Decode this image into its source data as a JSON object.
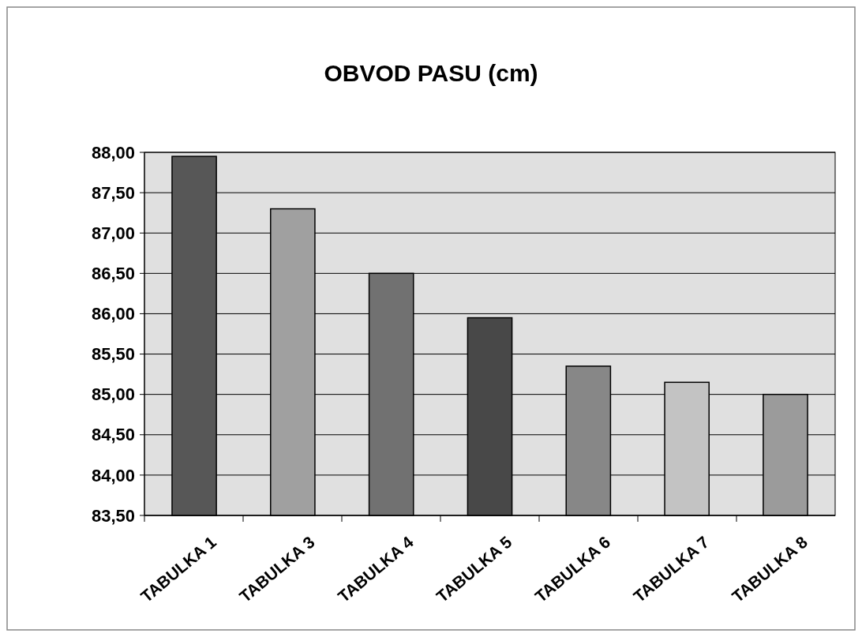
{
  "chart_data": {
    "type": "bar",
    "title": "OBVOD PASU (cm)",
    "categories": [
      "TABULKA 1",
      "TABULKA 3",
      "TABULKA 4",
      "TABULKA 5",
      "TABULKA 6",
      "TABULKA 7",
      "TABULKA 8"
    ],
    "values": [
      87.95,
      87.3,
      86.5,
      85.95,
      85.35,
      85.15,
      85.0
    ],
    "colors": [
      "#575757",
      "#a0a0a0",
      "#717171",
      "#484848",
      "#878787",
      "#c3c3c3",
      "#9b9b9b"
    ],
    "ylim": [
      83.5,
      88
    ],
    "yticks": [
      {
        "value": 83.5,
        "label": "83,50"
      },
      {
        "value": 84,
        "label": "84,00"
      },
      {
        "value": 84.5,
        "label": "84,50"
      },
      {
        "value": 85,
        "label": "85,00"
      },
      {
        "value": 85.5,
        "label": "85,50"
      },
      {
        "value": 86,
        "label": "86,00"
      },
      {
        "value": 86.5,
        "label": "86,50"
      },
      {
        "value": 87,
        "label": "87,00"
      },
      {
        "value": 87.5,
        "label": "87,50"
      },
      {
        "value": 88,
        "label": "88,00"
      }
    ],
    "grid": "y"
  }
}
